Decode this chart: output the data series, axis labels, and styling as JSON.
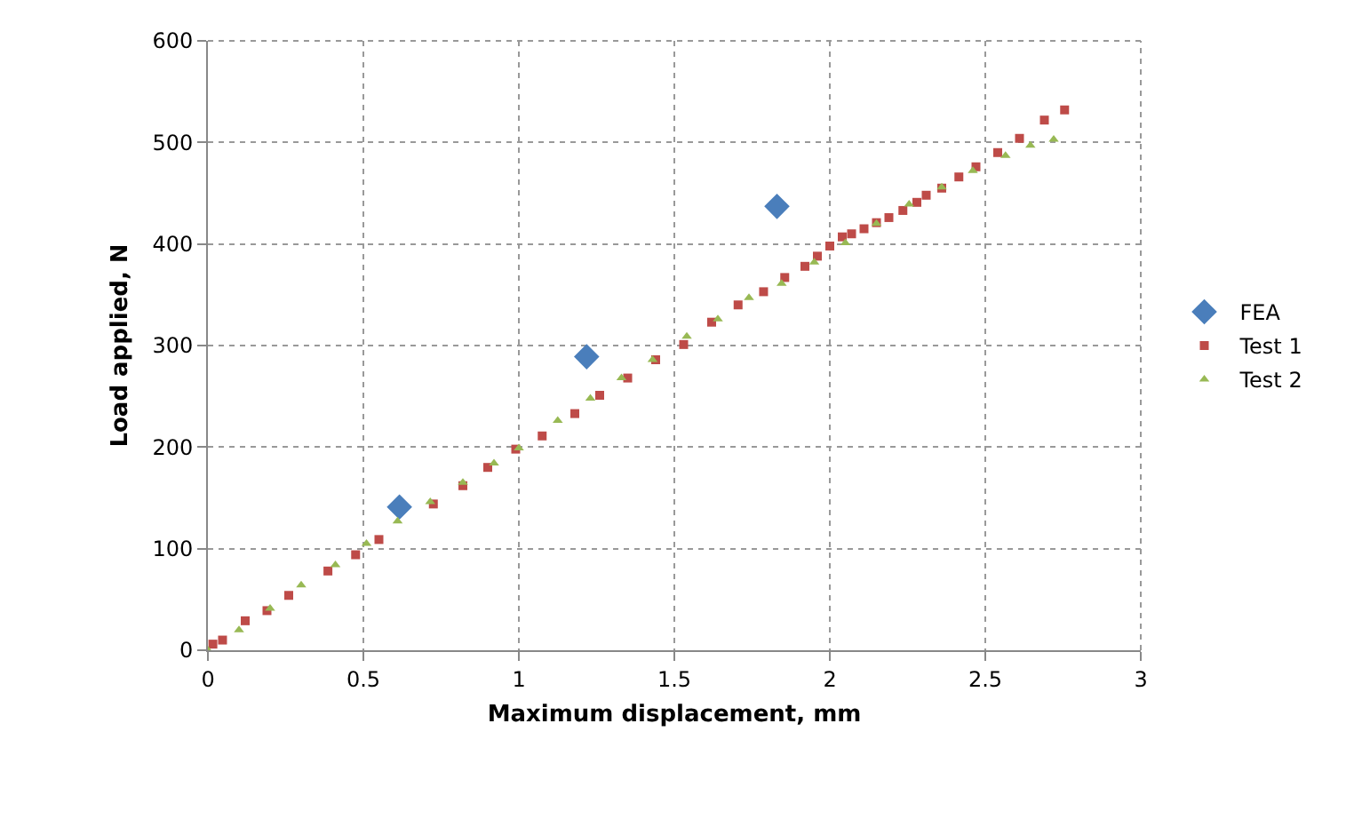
{
  "chart_data": {
    "type": "scatter",
    "xlabel": "Maximum displacement, mm",
    "ylabel": "Load applied, N",
    "xlim": [
      0,
      3
    ],
    "xticks": [
      0,
      0.5,
      1,
      1.5,
      2,
      2.5,
      3
    ],
    "ylim": [
      0,
      600
    ],
    "yticks": [
      0,
      100,
      200,
      300,
      400,
      500,
      600
    ],
    "grid": true,
    "legend": "right",
    "series": [
      {
        "name": "FEA",
        "color": "#4a7ebb",
        "marker": "diamond",
        "x": [
          0.616,
          1.218,
          1.83
        ],
        "values": [
          141,
          289,
          437
        ]
      },
      {
        "name": "Test 1",
        "color": "#be4b48",
        "marker": "square",
        "x": [
          0.016,
          0.047,
          0.12,
          0.19,
          0.26,
          0.386,
          0.475,
          0.55,
          0.725,
          0.82,
          0.9,
          0.99,
          1.075,
          1.18,
          1.26,
          1.35,
          1.44,
          1.53,
          1.62,
          1.705,
          1.787,
          1.855,
          1.92,
          1.96,
          2.0,
          2.04,
          2.07,
          2.11,
          2.15,
          2.19,
          2.235,
          2.28,
          2.31,
          2.36,
          2.415,
          2.47,
          2.54,
          2.61,
          2.69,
          2.755
        ],
        "values": [
          6,
          10,
          29,
          39,
          54,
          78,
          94,
          109,
          144,
          162,
          180,
          198,
          211,
          233,
          251,
          268,
          286,
          301,
          323,
          340,
          353,
          367,
          378,
          388,
          398,
          407,
          410,
          415,
          421,
          426,
          433,
          441,
          448,
          455,
          466,
          476,
          490,
          504,
          522,
          532
        ]
      },
      {
        "name": "Test 2",
        "color": "#98b954",
        "marker": "triangle",
        "x": [
          0,
          0.1,
          0.2,
          0.3,
          0.41,
          0.51,
          0.61,
          0.715,
          0.82,
          0.92,
          1.0,
          1.125,
          1.23,
          1.33,
          1.43,
          1.54,
          1.64,
          1.74,
          1.845,
          1.95,
          2.05,
          2.15,
          2.255,
          2.36,
          2.46,
          2.565,
          2.645,
          2.72
        ],
        "values": [
          0,
          20,
          41,
          64,
          84,
          105,
          127,
          146,
          165,
          184,
          199,
          226,
          248,
          268,
          286,
          309,
          326,
          347,
          361,
          382,
          401,
          420,
          439,
          456,
          472,
          487,
          497,
          503
        ]
      }
    ]
  }
}
